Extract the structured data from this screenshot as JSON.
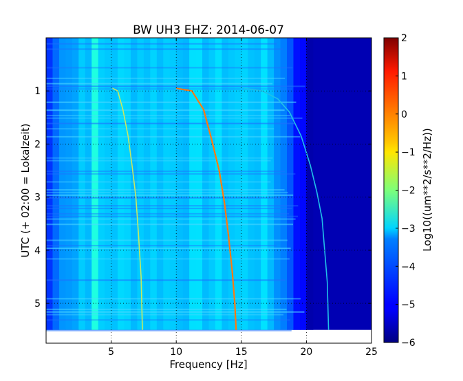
{
  "chart_data": {
    "type": "heatmap",
    "title": "BW UH3 EHZ: 2014-06-07",
    "xlabel": "Frequency [Hz]",
    "ylabel": "UTC (+ 02:00 = Lokalzeit)",
    "xlim": [
      0,
      25
    ],
    "ylim": [
      0,
      5.75
    ],
    "y_inverted": true,
    "grid": true,
    "x_ticks": [
      5,
      10,
      15,
      20,
      25
    ],
    "x_tick_labels": [
      "5",
      "10",
      "15",
      "20",
      "25"
    ],
    "y_ticks": [
      1,
      2,
      3,
      4,
      5
    ],
    "y_tick_labels": [
      "1",
      "2",
      "3",
      "4",
      "5"
    ],
    "data_extent_y": [
      0,
      5.5
    ],
    "colormap": "jet",
    "colorbar": {
      "label": "Log10((um**2/s**2/Hz))",
      "range": [
        -6,
        2
      ],
      "ticks": [
        2,
        1,
        0,
        -1,
        -2,
        -3,
        -4,
        -5,
        -6
      ],
      "tick_labels": [
        "2",
        "1",
        "0",
        "−1",
        "−2",
        "−3",
        "−4",
        "−5",
        "−6"
      ]
    },
    "series": [
      {
        "color": "#c8e860",
        "points": [
          [
            5.1,
            0.95
          ],
          [
            5.5,
            1.0
          ],
          [
            5.9,
            1.35
          ],
          [
            6.3,
            1.85
          ],
          [
            6.6,
            2.4
          ],
          [
            6.9,
            3.0
          ],
          [
            7.1,
            3.7
          ],
          [
            7.3,
            4.5
          ],
          [
            7.4,
            5.5
          ]
        ]
      },
      {
        "color": "#ff7a10",
        "points": [
          [
            10.0,
            0.95
          ],
          [
            11.2,
            1.0
          ],
          [
            12.1,
            1.35
          ],
          [
            12.7,
            1.9
          ],
          [
            13.3,
            2.5
          ],
          [
            13.7,
            3.1
          ],
          [
            14.0,
            3.7
          ],
          [
            14.3,
            4.4
          ],
          [
            14.5,
            5.0
          ],
          [
            14.6,
            5.5
          ]
        ]
      },
      {
        "color": "#20c0e8",
        "points": [
          [
            15.2,
            0.95
          ],
          [
            16.6,
            1.0
          ],
          [
            17.8,
            1.15
          ],
          [
            18.7,
            1.4
          ],
          [
            19.6,
            1.85
          ],
          [
            20.3,
            2.4
          ],
          [
            20.8,
            2.9
          ],
          [
            21.2,
            3.4
          ],
          [
            21.4,
            4.0
          ],
          [
            21.6,
            4.6
          ],
          [
            21.7,
            5.5
          ]
        ]
      }
    ]
  }
}
